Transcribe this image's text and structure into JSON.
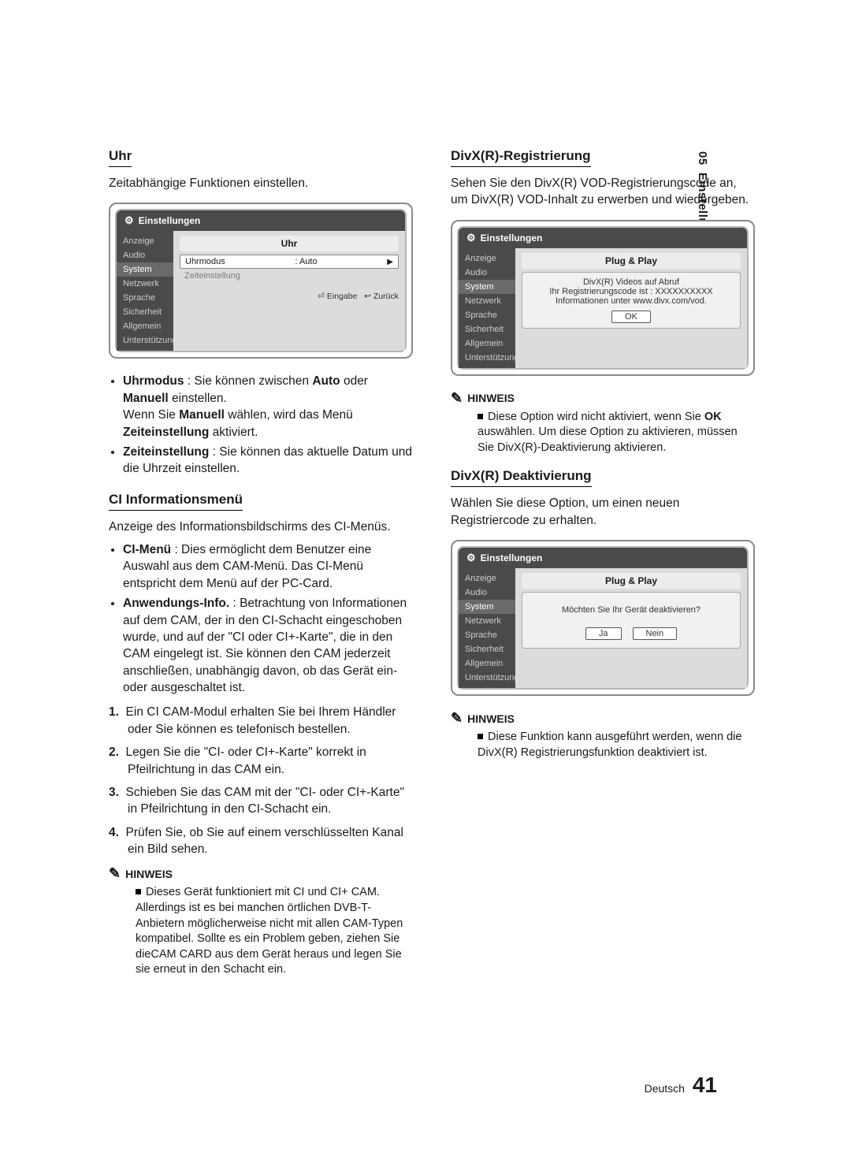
{
  "chapter": {
    "num": "05",
    "name": "Einstellung"
  },
  "footer": {
    "lang": "Deutsch",
    "page": "41"
  },
  "left": {
    "uhr": {
      "title": "Uhr",
      "intro": "Zeitabhängige Funktionen einstellen.",
      "bullets": [
        "<b>Uhrmodus</b> : Sie können zwischen <b>Auto</b> oder <b>Manuell</b> einstellen.<br>Wenn Sie <b>Manuell</b> wählen, wird das Menü <b>Zeiteinstellung</b> aktiviert.",
        "<b>Zeiteinstellung</b> : Sie können das aktuelle Datum und die Uhrzeit einstellen."
      ],
      "device": {
        "title": "Einstellungen",
        "side": [
          "Anzeige",
          "Audio",
          "System",
          "Netzwerk",
          "Sprache",
          "Sicherheit",
          "Allgemein",
          "Unterstützung"
        ],
        "side_sel": 2,
        "header": "Uhr",
        "row_label": "Uhrmodus",
        "row_value": ": Auto",
        "sub": "Zeiteinstellung",
        "foot_enter": "Eingabe",
        "foot_back": "Zurück"
      }
    },
    "ci": {
      "title": "CI Informationsmenü",
      "intro": "Anzeige des Informationsbildschirms des CI-Menüs.",
      "bullets": [
        "<b>CI-Menü</b> : Dies ermöglicht dem Benutzer eine Auswahl aus dem CAM-Menü. Das CI-Menü entspricht dem Menü auf der PC-Card.",
        "<b>Anwendungs-Info.</b> : Betrachtung von Informationen auf dem CAM, der in den CI-Schacht eingeschoben wurde, und auf der \"CI oder CI+-Karte\", die in den CAM eingelegt ist. Sie können den CAM jederzeit anschließen, unabhängig davon, ob das Gerät ein- oder ausgeschaltet ist."
      ],
      "steps": [
        "Ein CI CAM-Modul erhalten Sie bei Ihrem Händler oder Sie können es telefonisch bestellen.",
        "Legen Sie die \"CI- oder CI+-Karte\" korrekt in Pfeilrichtung in das CAM ein.",
        "Schieben Sie das CAM mit der \"CI- oder CI+-Karte\" in Pfeilrichtung in den CI-Schacht ein.",
        "Prüfen Sie, ob Sie auf einem verschlüsselten Kanal ein Bild sehen."
      ],
      "note_title": "HINWEIS",
      "note_body": "Dieses Gerät funktioniert mit CI und CI+ CAM. Allerdings ist es bei manchen örtlichen DVB-T-Anbietern möglicherweise nicht mit allen CAM-Typen kompatibel. Sollte es ein Problem geben, ziehen Sie dieCAM CARD aus dem Gerät heraus und legen Sie sie erneut in den Schacht ein."
    }
  },
  "right": {
    "reg": {
      "title": "DivX(R)-Registrierung",
      "intro": "Sehen Sie den DivX(R) VOD-Registrierungscode an, um DivX(R) VOD-Inhalt zu erwerben und wiedergeben.",
      "device": {
        "title": "Einstellungen",
        "side": [
          "Anzeige",
          "Audio",
          "System",
          "Netzwerk",
          "Sprache",
          "Sicherheit",
          "Allgemein",
          "Unterstützung"
        ],
        "side_sel": 2,
        "header": "Plug & Play",
        "popup_line1": "DivX(R) Videos auf Abruf",
        "popup_line2": "Ihr Registrierungscode ist : XXXXXXXXXX",
        "popup_line3": "Informationen unter www.divx.com/vod.",
        "ok": "OK"
      },
      "note_title": "HINWEIS",
      "note_body": "Diese Option wird nicht aktiviert, wenn Sie <b>OK</b> auswählen. Um diese Option zu aktivieren, müssen Sie DivX(R)-Deaktivierung aktivieren."
    },
    "deact": {
      "title": "DivX(R) Deaktivierung",
      "intro": "Wählen Sie diese Option, um einen neuen Registriercode zu erhalten.",
      "device": {
        "title": "Einstellungen",
        "side": [
          "Anzeige",
          "Audio",
          "System",
          "Netzwerk",
          "Sprache",
          "Sicherheit",
          "Allgemein",
          "Unterstützung"
        ],
        "side_sel": 2,
        "header": "Plug & Play",
        "popup_line1": "Möchten Sie Ihr Gerät deaktivieren?",
        "yes": "Ja",
        "no": "Nein"
      },
      "note_title": "HINWEIS",
      "note_body": "Diese Funktion kann ausgeführt werden, wenn die DivX(R) Registrierungsfunktion deaktiviert ist."
    }
  }
}
